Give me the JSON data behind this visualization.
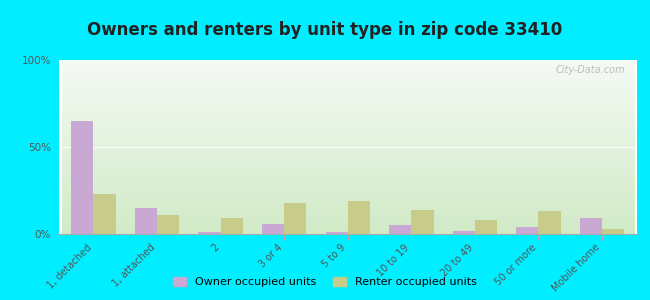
{
  "title": "Owners and renters by unit type in zip code 33410",
  "categories": [
    "1, detached",
    "1, attached",
    "2",
    "3 or 4",
    "5 to 9",
    "10 to 19",
    "20 to 49",
    "50 or more",
    "Mobile home"
  ],
  "owner_values": [
    65,
    15,
    1,
    6,
    1,
    5,
    2,
    4,
    9
  ],
  "renter_values": [
    23,
    11,
    9,
    18,
    19,
    14,
    8,
    13,
    3
  ],
  "owner_color": "#c9a8d4",
  "renter_color": "#c8cc8a",
  "background_outer": "#00eeff",
  "yticks": [
    0,
    50,
    100
  ],
  "ytick_labels": [
    "0%",
    "50%",
    "100%"
  ],
  "ylim": [
    0,
    100
  ],
  "watermark": "City-Data.com",
  "legend_owner": "Owner occupied units",
  "legend_renter": "Renter occupied units",
  "title_fontsize": 12,
  "bar_width": 0.35
}
